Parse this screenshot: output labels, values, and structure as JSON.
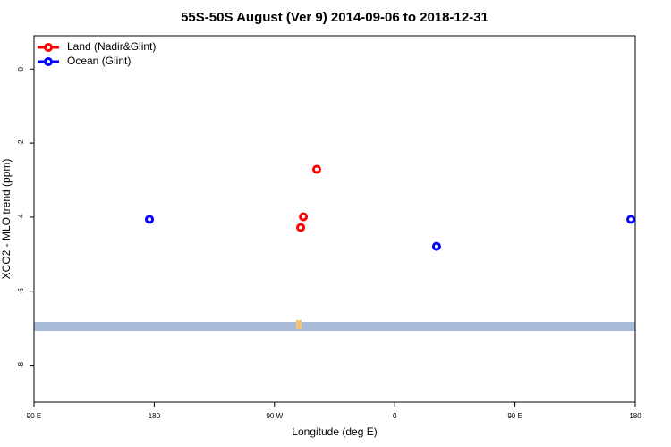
{
  "chart_data": {
    "type": "scatter",
    "title": "55S-50S August (Ver 9)   2014-09-06 to 2018-12-31",
    "xlabel": "Longitude (deg E)",
    "ylabel": "XCO2 - MLO trend (ppm)",
    "xlim": [
      90,
      540
    ],
    "ylim": [
      -9,
      0.9
    ],
    "xticks": [
      {
        "value": 90,
        "label": "90 E"
      },
      180,
      {
        "value": 270,
        "label": "90 W"
      },
      {
        "value": 360,
        "label": "0"
      },
      {
        "value": 450,
        "label": "90 E"
      },
      {
        "value": 540,
        "label": "180"
      }
    ],
    "yticks": [
      0,
      -2,
      -4,
      -6,
      -8
    ],
    "legend": "upper left",
    "series": [
      {
        "name": "Land (Nadir&Glint)",
        "color": "#ff0000",
        "x": [
          301.6,
          291.6,
          289.6
        ],
        "values": [
          -2.71,
          -3.99,
          -4.28
        ]
      },
      {
        "name": "Ocean (Glint)",
        "color": "#0000ff",
        "x": [
          176.4,
          391.3,
          536.7
        ],
        "values": [
          -4.06,
          -4.79,
          -4.06
        ]
      }
    ]
  }
}
